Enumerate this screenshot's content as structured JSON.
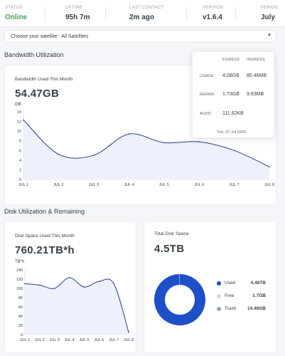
{
  "status": {
    "items": [
      {
        "label": "STATUS",
        "value": "Online"
      },
      {
        "label": "UPTIME",
        "value": "95h 7m"
      },
      {
        "label": "LAST CONTACT",
        "value": "2m ago"
      },
      {
        "label": "VERSION",
        "value": "v1.6.4"
      },
      {
        "label": "PERIOD",
        "value": "July"
      }
    ]
  },
  "satellite": {
    "label": "Choose your satellite:",
    "value": "All Satellites",
    "icon": "chevron-down-icon"
  },
  "bandwidth": {
    "section_title": "Bandwidth Utilization",
    "card_title": "Bandwidth Used This Month",
    "total": "54.47GB",
    "unit": "GB"
  },
  "tooltip": {
    "headers": [
      "EGRESS",
      "INGRESS"
    ],
    "rows": [
      {
        "label": "USAGE",
        "egress": "4.08GB",
        "ingress": "80.46MB"
      },
      {
        "label": "REPAIR",
        "egress": "1.73GB",
        "ingress": "9.63MB"
      },
      {
        "label": "AUDIT",
        "egress": "111.62KB",
        "ingress": ""
      }
    ],
    "date": "Tue, 07 Jul 2020"
  },
  "disk": {
    "section_title": "Disk Utilization & Remaining",
    "card_title": "Disk Space Used This Month",
    "total": "760.21TB*h",
    "unit": "TB*h"
  },
  "total_disk": {
    "card_title": "Total Disk Space",
    "total": "4.5TB",
    "legend": [
      {
        "label": "Used",
        "value": "4.48TB",
        "color": "#1f4fc8"
      },
      {
        "label": "Free",
        "value": "1.7GB",
        "color": "#d6d6d6"
      },
      {
        "label": "Trash",
        "value": "14.48GB",
        "color": "#8fa7c6"
      }
    ]
  },
  "chart_data": [
    {
      "type": "area",
      "title": "Bandwidth Used This Month",
      "ylabel": "GB",
      "categories": [
        "JUL 1",
        "JUL 2",
        "JUL 3",
        "JUL 4",
        "JUL 5",
        "JUL 6",
        "JUL 7",
        "JUL 8"
      ],
      "yticks": [
        0,
        2,
        4,
        6,
        8,
        10,
        12,
        14
      ],
      "ylim": [
        0,
        14
      ],
      "values": [
        12.3,
        5.2,
        5.0,
        9.4,
        7.6,
        7.8,
        6.0,
        2.6
      ],
      "color": "#2b3f8a",
      "fill": "#eef0fb"
    },
    {
      "type": "area",
      "title": "Disk Space Used This Month",
      "ylabel": "TB*h",
      "categories": [
        "JUL 1",
        "JUL 2",
        "JUL 3",
        "JUL 4",
        "JUL 5",
        "JUL 6",
        "JUL 7",
        "JUL 8"
      ],
      "yticks": [
        0,
        20,
        40,
        60,
        80,
        100,
        120,
        140
      ],
      "ylim": [
        0,
        140
      ],
      "values": [
        110,
        107,
        100,
        123,
        103,
        115,
        110,
        5
      ],
      "color": "#2b3f8a",
      "fill": "#eef0fb"
    },
    {
      "type": "pie",
      "title": "Total Disk Space",
      "categories": [
        "Used",
        "Free",
        "Trash"
      ],
      "values": [
        4.48,
        0.0017,
        0.01448
      ],
      "colors": [
        "#1f4fc8",
        "#d6d6d6",
        "#8fa7c6"
      ]
    }
  ]
}
